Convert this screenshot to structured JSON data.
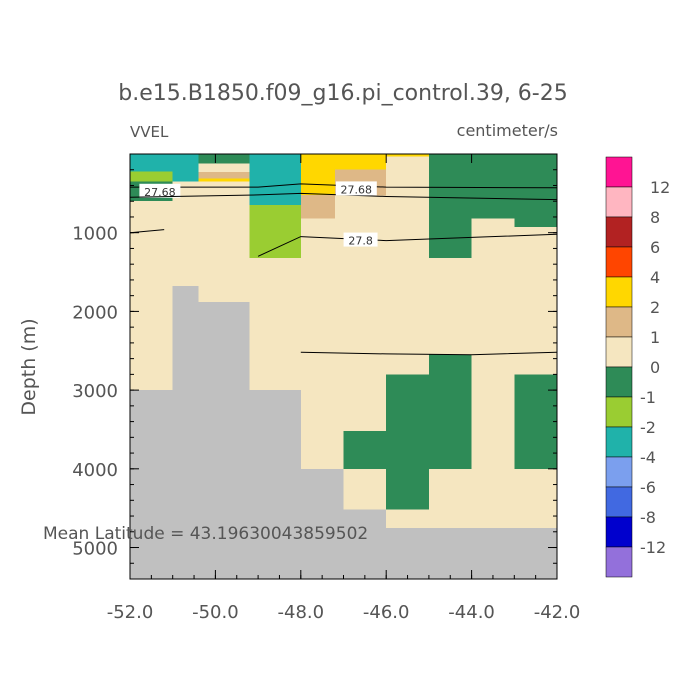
{
  "title": "b.e15.B1850.f09_g16.pi_control.39, 6-25",
  "variable": "VVEL",
  "units": "centimeter/s",
  "ylabel": "Depth (m)",
  "annotation": "Mean Latitude = 43.19630043859502",
  "colors": {
    "land": "#c0c0c0",
    "background": "#ffffff",
    "text": "#555555"
  },
  "chart_data": {
    "type": "heatmap",
    "title": "b.e15.B1850.f09_g16.pi_control.39, 6-25",
    "xlabel": "",
    "ylabel": "Depth (m)",
    "xlim": [
      -52.0,
      -42.0
    ],
    "ylim": [
      5400,
      0
    ],
    "x_ticks": [
      "-52.0",
      "-50.0",
      "-48.0",
      "-46.0",
      "-44.0",
      "-42.0"
    ],
    "x_tick_values": [
      -52,
      -50,
      -48,
      -46,
      -44,
      -42
    ],
    "y_ticks": [
      "1000",
      "2000",
      "3000",
      "4000",
      "5000"
    ],
    "y_tick_values": [
      1000,
      2000,
      3000,
      4000,
      5000
    ],
    "colorbar": {
      "labels": [
        "12",
        "8",
        "6",
        "4",
        "2",
        "1",
        "0",
        "-1",
        "-2",
        "-4",
        "-6",
        "-8",
        "-12"
      ],
      "colors": [
        "#ff1493",
        "#ffb6c1",
        "#b22222",
        "#ff4500",
        "#ffd700",
        "#deb887",
        "#f5e6c0",
        "#2e8b57",
        "#9acd32",
        "#20b2aa",
        "#7b9fee",
        "#4169e1",
        "#0000cd",
        "#9370db"
      ]
    },
    "cells": [
      {
        "x": [
          -52.0,
          -50.4
        ],
        "depth": [
          0,
          5400
        ],
        "c": 6
      },
      {
        "x": [
          -50.4,
          -49.2
        ],
        "depth": [
          0,
          5400
        ],
        "c": 6
      },
      {
        "x": [
          -49.2,
          -48.0
        ],
        "depth": [
          0,
          5400
        ],
        "c": 6
      },
      {
        "x": [
          -48.0,
          -46.0
        ],
        "depth": [
          0,
          5400
        ],
        "c": 6
      },
      {
        "x": [
          -46.0,
          -44.0
        ],
        "depth": [
          0,
          5400
        ],
        "c": 6
      },
      {
        "x": [
          -44.0,
          -42.0
        ],
        "depth": [
          0,
          5400
        ],
        "c": 6
      },
      {
        "x": [
          -52.0,
          -50.4
        ],
        "depth": [
          0,
          220
        ],
        "c": 9
      },
      {
        "x": [
          -52.0,
          -51.0
        ],
        "depth": [
          220,
          350
        ],
        "c": 8
      },
      {
        "x": [
          -52.0,
          -51.0
        ],
        "depth": [
          350,
          600
        ],
        "c": 7
      },
      {
        "x": [
          -51.0,
          -50.4
        ],
        "depth": [
          220,
          350
        ],
        "c": 9
      },
      {
        "x": [
          -50.4,
          -49.2
        ],
        "depth": [
          0,
          120
        ],
        "c": 7
      },
      {
        "x": [
          -50.4,
          -49.2
        ],
        "depth": [
          230,
          310
        ],
        "c": 5
      },
      {
        "x": [
          -50.4,
          -49.2
        ],
        "depth": [
          310,
          350
        ],
        "c": 4
      },
      {
        "x": [
          -49.2,
          -48.0
        ],
        "depth": [
          0,
          650
        ],
        "c": 9
      },
      {
        "x": [
          -49.2,
          -48.0
        ],
        "depth": [
          650,
          1320
        ],
        "c": 8
      },
      {
        "x": [
          -48.0,
          -46.0
        ],
        "depth": [
          0,
          200
        ],
        "c": 4
      },
      {
        "x": [
          -48.0,
          -47.2
        ],
        "depth": [
          200,
          520
        ],
        "c": 4
      },
      {
        "x": [
          -48.0,
          -47.2
        ],
        "depth": [
          520,
          820
        ],
        "c": 5
      },
      {
        "x": [
          -47.2,
          -46.0
        ],
        "depth": [
          200,
          350
        ],
        "c": 5
      },
      {
        "x": [
          -47.2,
          -46.0
        ],
        "depth": [
          350,
          530
        ],
        "c": 5
      },
      {
        "x": [
          -46.0,
          -44.0
        ],
        "depth": [
          0,
          30
        ],
        "c": 4
      },
      {
        "x": [
          -44.0,
          -42.0
        ],
        "depth": [
          0,
          20
        ],
        "c": 7
      },
      {
        "x": [
          -45.0,
          -44.0
        ],
        "depth": [
          0,
          1320
        ],
        "c": 7
      },
      {
        "x": [
          -44.0,
          -43.0
        ],
        "depth": [
          0,
          820
        ],
        "c": 7
      },
      {
        "x": [
          -43.0,
          -42.0
        ],
        "depth": [
          0,
          930
        ],
        "c": 7
      },
      {
        "x": [
          -45.0,
          -44.0
        ],
        "depth": [
          2550,
          4000
        ],
        "c": 7
      },
      {
        "x": [
          -46.0,
          -45.0
        ],
        "depth": [
          2800,
          4000
        ],
        "c": 7
      },
      {
        "x": [
          -47.0,
          -46.0
        ],
        "depth": [
          3520,
          4000
        ],
        "c": 7
      },
      {
        "x": [
          -46.0,
          -45.0
        ],
        "depth": [
          4000,
          4520
        ],
        "c": 7
      },
      {
        "x": [
          -43.0,
          -42.0
        ],
        "depth": [
          2800,
          4000
        ],
        "c": 7
      }
    ],
    "land": [
      {
        "x": [
          -52.0,
          -51.0
        ],
        "depth": [
          3000,
          5400
        ]
      },
      {
        "x": [
          -51.0,
          -50.4
        ],
        "depth": [
          1680,
          5400
        ]
      },
      {
        "x": [
          -50.4,
          -49.2
        ],
        "depth": [
          1880,
          5400
        ]
      },
      {
        "x": [
          -49.2,
          -48.0
        ],
        "depth": [
          3000,
          5400
        ]
      },
      {
        "x": [
          -48.0,
          -47.0
        ],
        "depth": [
          4000,
          5400
        ]
      },
      {
        "x": [
          -47.0,
          -46.0
        ],
        "depth": [
          4520,
          5400
        ]
      },
      {
        "x": [
          -46.0,
          -42.0
        ],
        "depth": [
          4750,
          5400
        ]
      }
    ],
    "contours": [
      {
        "label": "27.68",
        "label_at": [
          -51.3,
          480
        ],
        "points": [
          [
            -52.0,
            420
          ],
          [
            -49.0,
            420
          ],
          [
            -48.0,
            380
          ],
          [
            -46.0,
            420
          ],
          [
            -42.0,
            430
          ]
        ]
      },
      {
        "label": "27.68",
        "label_at": [
          -46.7,
          450
        ],
        "points": [
          [
            -52.0,
            550
          ],
          [
            -49.0,
            520
          ],
          [
            -48.0,
            500
          ],
          [
            -46.0,
            540
          ],
          [
            -42.0,
            580
          ]
        ]
      },
      {
        "label": "",
        "points": [
          [
            -52.0,
            1000
          ],
          [
            -51.2,
            960
          ]
        ]
      },
      {
        "label": "27.8",
        "label_at": [
          -46.6,
          1100
        ],
        "points": [
          [
            -49.0,
            1300
          ],
          [
            -48.0,
            1050
          ],
          [
            -46.0,
            1100
          ],
          [
            -44.0,
            1060
          ],
          [
            -42.0,
            1020
          ]
        ]
      },
      {
        "label": "",
        "points": [
          [
            -48.0,
            2520
          ],
          [
            -46.0,
            2540
          ],
          [
            -44.0,
            2550
          ],
          [
            -42.0,
            2520
          ]
        ]
      }
    ]
  }
}
